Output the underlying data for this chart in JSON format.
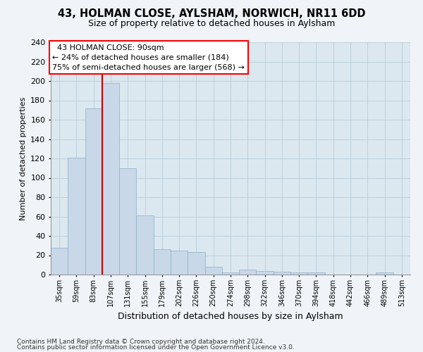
{
  "title1": "43, HOLMAN CLOSE, AYLSHAM, NORWICH, NR11 6DD",
  "title2": "Size of property relative to detached houses in Aylsham",
  "xlabel": "Distribution of detached houses by size in Aylsham",
  "ylabel": "Number of detached properties",
  "footer1": "Contains HM Land Registry data © Crown copyright and database right 2024.",
  "footer2": "Contains public sector information licensed under the Open Government Licence v3.0.",
  "annotation_line1": "  43 HOLMAN CLOSE: 90sqm",
  "annotation_line2": "← 24% of detached houses are smaller (184)",
  "annotation_line3": "75% of semi-detached houses are larger (568) →",
  "bar_color": "#c8d8e8",
  "bar_edge_color": "#8aafc8",
  "grid_color": "#b8ccd8",
  "bg_color": "#dce8f0",
  "fig_bg_color": "#f0f4f8",
  "red_line_color": "#cc0000",
  "categories": [
    "35sqm",
    "59sqm",
    "83sqm",
    "107sqm",
    "131sqm",
    "155sqm",
    "179sqm",
    "202sqm",
    "226sqm",
    "250sqm",
    "274sqm",
    "298sqm",
    "322sqm",
    "346sqm",
    "370sqm",
    "394sqm",
    "418sqm",
    "442sqm",
    "466sqm",
    "489sqm",
    "513sqm"
  ],
  "values": [
    28,
    121,
    172,
    198,
    110,
    61,
    26,
    25,
    23,
    8,
    2,
    5,
    4,
    3,
    2,
    2,
    0,
    0,
    0,
    2,
    0
  ],
  "bar_width": 1.0,
  "red_line_x": 2.5,
  "ylim": [
    0,
    240
  ],
  "yticks": [
    0,
    20,
    40,
    60,
    80,
    100,
    120,
    140,
    160,
    180,
    200,
    220,
    240
  ],
  "title1_fontsize": 10.5,
  "title2_fontsize": 9,
  "ylabel_fontsize": 8,
  "xlabel_fontsize": 9,
  "tick_fontsize": 8,
  "xtick_fontsize": 7,
  "footer_fontsize": 6.5,
  "annot_fontsize": 8
}
